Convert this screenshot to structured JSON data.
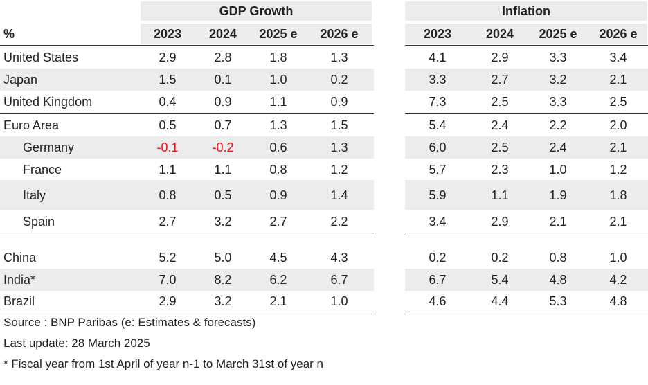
{
  "table": {
    "groups": [
      "GDP Growth",
      "Inflation"
    ],
    "unit": "%",
    "columns": [
      "2023",
      "2024",
      "2025 e",
      "2026 e"
    ],
    "sections": [
      [
        {
          "label": "United States",
          "gdp": [
            "2.9",
            "2.8",
            "1.8",
            "1.3"
          ],
          "inflation": [
            "4.1",
            "2.9",
            "3.3",
            "3.4"
          ]
        },
        {
          "label": "Japan",
          "gdp": [
            "1.5",
            "0.1",
            "1.0",
            "0.2"
          ],
          "inflation": [
            "3.3",
            "2.7",
            "3.2",
            "2.1"
          ]
        },
        {
          "label": "United Kingdom",
          "gdp": [
            "0.4",
            "0.9",
            "1.1",
            "0.9"
          ],
          "inflation": [
            "7.3",
            "2.5",
            "3.3",
            "2.5"
          ]
        }
      ],
      [
        {
          "label": "Euro Area",
          "gdp": [
            "0.5",
            "0.7",
            "1.3",
            "1.5"
          ],
          "inflation": [
            "5.4",
            "2.4",
            "2.2",
            "2.0"
          ]
        },
        {
          "label": "Germany",
          "indent": true,
          "gdp": [
            "-0.1",
            "-0.2",
            "0.6",
            "1.3"
          ],
          "inflation": [
            "6.0",
            "2.5",
            "2.4",
            "2.1"
          ]
        },
        {
          "label": "France",
          "indent": true,
          "gdp": [
            "1.1",
            "1.1",
            "0.8",
            "1.2"
          ],
          "inflation": [
            "5.7",
            "2.3",
            "1.0",
            "1.2"
          ]
        },
        {
          "label": "Italy",
          "indent": true,
          "gdp": [
            "0.8",
            "0.5",
            "0.9",
            "1.4"
          ],
          "inflation": [
            "5.9",
            "1.1",
            "1.9",
            "1.8"
          ]
        },
        {
          "label": "Spain",
          "indent": true,
          "gdp": [
            "2.7",
            "3.2",
            "2.7",
            "2.2"
          ],
          "inflation": [
            "3.4",
            "2.9",
            "2.1",
            "2.1"
          ]
        }
      ],
      [
        {
          "label": "China",
          "gdp": [
            "5.2",
            "5.0",
            "4.5",
            "4.3"
          ],
          "inflation": [
            "0.2",
            "0.2",
            "0.8",
            "1.0"
          ]
        },
        {
          "label": "India*",
          "gdp": [
            "7.0",
            "8.2",
            "6.2",
            "6.7"
          ],
          "inflation": [
            "6.7",
            "5.4",
            "4.8",
            "4.2"
          ]
        },
        {
          "label": "Brazil",
          "gdp": [
            "2.9",
            "3.2",
            "2.1",
            "1.0"
          ],
          "inflation": [
            "4.6",
            "4.4",
            "5.3",
            "4.8"
          ]
        }
      ]
    ]
  },
  "notes": [
    "Source : BNP Paribas (e: Estimates & forecasts)",
    "Last update: 28 March 2025",
    "* Fiscal year from 1st April of year n-1 to March 31st of year n"
  ]
}
